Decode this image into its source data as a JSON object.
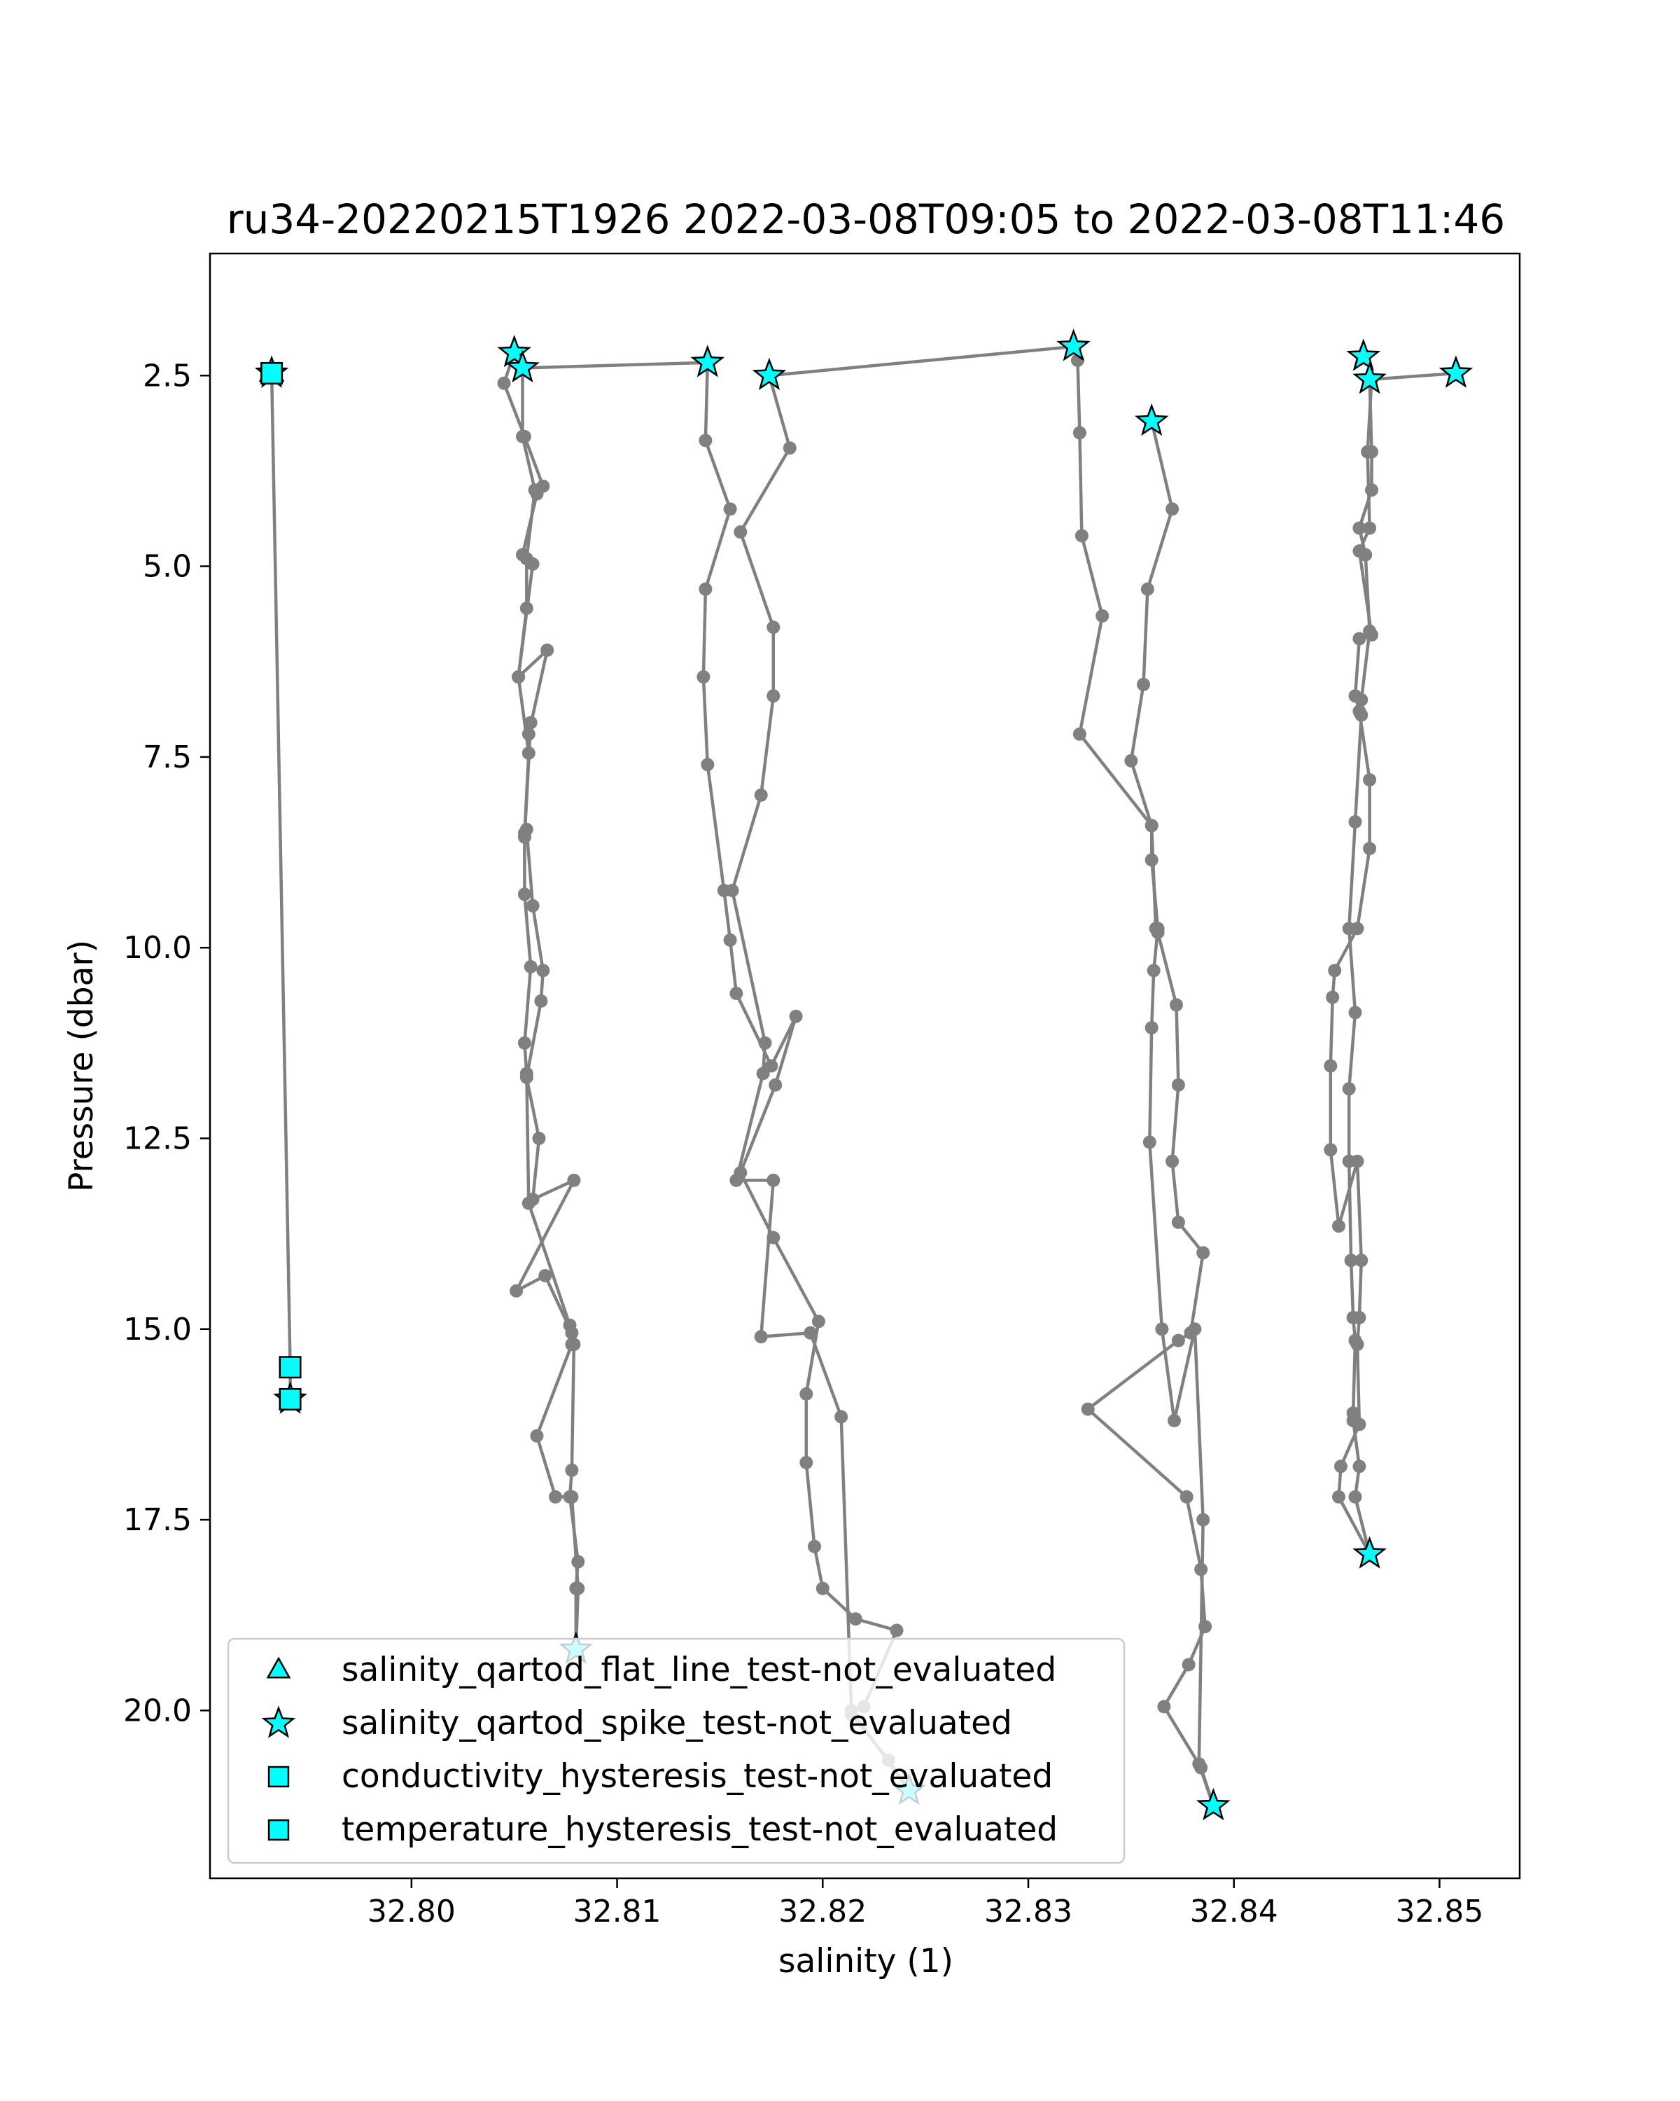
{
  "chart_data": {
    "type": "scatter",
    "title": "ru34-20220215T1926 2022-03-08T09:05 to 2022-03-08T11:46",
    "xlabel": "salinity (1)",
    "ylabel": "Pressure (dbar)",
    "xlim": [
      32.7902,
      32.8539
    ],
    "ylim": [
      22.2,
      0.9
    ],
    "y_inverted": true,
    "xticks": [
      32.8,
      32.81,
      32.82,
      32.83,
      32.84,
      32.85
    ],
    "xtick_labels": [
      "32.80",
      "32.81",
      "32.82",
      "32.83",
      "32.84",
      "32.85"
    ],
    "yticks": [
      2.5,
      5.0,
      7.5,
      10.0,
      12.5,
      15.0,
      17.5,
      20.0
    ],
    "ytick_labels": [
      "2.5",
      "5.0",
      "7.5",
      "10.0",
      "12.5",
      "15.0",
      "17.5",
      "20.0"
    ],
    "grid": false,
    "legend_position": "lower-left",
    "profile_color": "#808080",
    "marker_color": "#00ffff",
    "profiles": [
      {
        "points": [
          [
            32.7932,
            2.47
          ],
          [
            32.7941,
            15.5
          ],
          [
            32.7941,
            15.92
          ]
        ]
      },
      {
        "points": [
          [
            32.808,
            19.2
          ],
          [
            32.808,
            18.4
          ],
          [
            32.8081,
            18.05
          ],
          [
            32.8077,
            17.2
          ],
          [
            32.8078,
            16.85
          ],
          [
            32.8079,
            15.2
          ],
          [
            32.8078,
            15.05
          ],
          [
            32.8065,
            14.3
          ],
          [
            32.8051,
            14.5
          ],
          [
            32.8079,
            13.05
          ],
          [
            32.8059,
            13.3
          ],
          [
            32.8062,
            12.5
          ],
          [
            32.8056,
            11.7
          ],
          [
            32.8063,
            10.7
          ],
          [
            32.8064,
            10.3
          ],
          [
            32.8059,
            9.45
          ],
          [
            32.8056,
            8.45
          ],
          [
            32.8055,
            8.55
          ],
          [
            32.8058,
            7.05
          ],
          [
            32.8057,
            7.2
          ],
          [
            32.8066,
            6.1
          ],
          [
            32.8052,
            6.45
          ],
          [
            32.8059,
            4.97
          ],
          [
            32.8054,
            4.85
          ],
          [
            32.8061,
            4.05
          ],
          [
            32.8064,
            3.95
          ],
          [
            32.8055,
            3.3
          ],
          [
            32.8045,
            2.6
          ],
          [
            32.805,
            2.2
          ],
          [
            32.8054,
            2.4
          ],
          [
            32.8144,
            2.33
          ]
        ]
      },
      {
        "points": [
          [
            32.808,
            19.2
          ],
          [
            32.8081,
            18.4
          ],
          [
            32.8078,
            17.2
          ],
          [
            32.807,
            17.2
          ],
          [
            32.8061,
            16.4
          ],
          [
            32.8078,
            15.2
          ],
          [
            32.8077,
            14.95
          ],
          [
            32.8057,
            13.35
          ],
          [
            32.8056,
            11.65
          ],
          [
            32.8055,
            11.25
          ],
          [
            32.8058,
            10.25
          ],
          [
            32.8055,
            9.3
          ],
          [
            32.8055,
            8.5
          ],
          [
            32.8057,
            7.45
          ],
          [
            32.8052,
            6.45
          ],
          [
            32.8056,
            5.55
          ],
          [
            32.8056,
            4.9
          ],
          [
            32.806,
            4.0
          ],
          [
            32.8054,
            3.3
          ],
          [
            32.8054,
            2.4
          ]
        ]
      },
      {
        "points": [
          [
            32.8144,
            2.33
          ],
          [
            32.8143,
            3.35
          ],
          [
            32.8155,
            4.25
          ],
          [
            32.8143,
            5.3
          ],
          [
            32.8142,
            6.45
          ],
          [
            32.8144,
            7.6
          ],
          [
            32.8152,
            9.25
          ],
          [
            32.8155,
            9.9
          ],
          [
            32.8158,
            10.6
          ],
          [
            32.8175,
            11.55
          ],
          [
            32.8187,
            10.9
          ],
          [
            32.8177,
            11.8
          ],
          [
            32.816,
            12.95
          ],
          [
            32.8176,
            13.8
          ],
          [
            32.8198,
            14.9
          ],
          [
            32.8192,
            15.85
          ],
          [
            32.8192,
            16.75
          ],
          [
            32.8196,
            17.85
          ],
          [
            32.82,
            18.4
          ],
          [
            32.8216,
            18.8
          ],
          [
            32.8236,
            18.95
          ],
          [
            32.822,
            19.95
          ],
          [
            32.8214,
            20.0
          ],
          [
            32.8242,
            21.05
          ]
        ]
      },
      {
        "points": [
          [
            32.8242,
            21.05
          ],
          [
            32.8232,
            20.65
          ],
          [
            32.8214,
            20.05
          ],
          [
            32.8209,
            16.15
          ],
          [
            32.8194,
            15.05
          ],
          [
            32.817,
            15.1
          ],
          [
            32.8176,
            13.05
          ],
          [
            32.8158,
            13.05
          ],
          [
            32.8171,
            11.65
          ],
          [
            32.8172,
            11.25
          ],
          [
            32.8156,
            9.25
          ],
          [
            32.817,
            8.0
          ],
          [
            32.8176,
            6.7
          ],
          [
            32.8176,
            5.8
          ],
          [
            32.816,
            4.55
          ],
          [
            32.8184,
            3.45
          ],
          [
            32.8174,
            2.5
          ],
          [
            32.8322,
            2.12
          ]
        ]
      },
      {
        "points": [
          [
            32.8322,
            2.12
          ],
          [
            32.8324,
            2.3
          ],
          [
            32.8325,
            3.25
          ],
          [
            32.8326,
            4.6
          ],
          [
            32.8336,
            5.65
          ],
          [
            32.8325,
            7.2
          ],
          [
            32.836,
            8.4
          ],
          [
            32.8362,
            9.75
          ],
          [
            32.8363,
            9.8
          ],
          [
            32.8372,
            10.75
          ],
          [
            32.8373,
            11.8
          ],
          [
            32.837,
            12.8
          ],
          [
            32.8373,
            13.6
          ],
          [
            32.8385,
            14.0
          ],
          [
            32.8379,
            15.05
          ],
          [
            32.8373,
            15.15
          ],
          [
            32.8329,
            16.05
          ],
          [
            32.8377,
            17.2
          ],
          [
            32.8384,
            18.15
          ],
          [
            32.8386,
            18.9
          ],
          [
            32.8378,
            19.4
          ],
          [
            32.8366,
            19.95
          ],
          [
            32.8384,
            20.75
          ],
          [
            32.839,
            21.25
          ]
        ]
      },
      {
        "points": [
          [
            32.839,
            21.25
          ],
          [
            32.8383,
            20.7
          ],
          [
            32.8385,
            17.5
          ],
          [
            32.8381,
            15.0
          ],
          [
            32.8371,
            16.2
          ],
          [
            32.8365,
            15.0
          ],
          [
            32.8359,
            12.55
          ],
          [
            32.836,
            11.05
          ],
          [
            32.8361,
            10.3
          ],
          [
            32.8363,
            9.75
          ],
          [
            32.836,
            8.85
          ],
          [
            32.836,
            8.4
          ],
          [
            32.835,
            7.55
          ],
          [
            32.8356,
            6.55
          ],
          [
            32.8358,
            5.3
          ],
          [
            32.837,
            4.25
          ],
          [
            32.836,
            3.1
          ]
        ]
      },
      {
        "points": [
          [
            32.8466,
            17.95
          ],
          [
            32.8459,
            17.2
          ],
          [
            32.8461,
            16.8
          ],
          [
            32.8458,
            16.2
          ],
          [
            32.8458,
            16.1
          ],
          [
            32.8459,
            15.15
          ],
          [
            32.8458,
            14.85
          ],
          [
            32.8457,
            14.1
          ],
          [
            32.8456,
            12.8
          ],
          [
            32.8456,
            11.85
          ],
          [
            32.8459,
            10.85
          ],
          [
            32.8456,
            9.75
          ],
          [
            32.8459,
            8.35
          ],
          [
            32.8462,
            6.95
          ],
          [
            32.8462,
            6.75
          ],
          [
            32.8466,
            5.85
          ],
          [
            32.8464,
            4.85
          ],
          [
            32.8461,
            4.5
          ],
          [
            32.8467,
            4.0
          ],
          [
            32.8467,
            3.5
          ],
          [
            32.8466,
            2.55
          ]
        ]
      },
      {
        "points": [
          [
            32.8466,
            17.95
          ],
          [
            32.8451,
            17.2
          ],
          [
            32.8452,
            16.8
          ],
          [
            32.8461,
            16.25
          ],
          [
            32.846,
            15.2
          ],
          [
            32.8461,
            14.85
          ],
          [
            32.8462,
            14.1
          ],
          [
            32.846,
            12.8
          ],
          [
            32.8451,
            13.65
          ],
          [
            32.8447,
            12.65
          ],
          [
            32.8447,
            11.55
          ],
          [
            32.8448,
            10.65
          ],
          [
            32.8449,
            10.3
          ],
          [
            32.846,
            9.75
          ],
          [
            32.8466,
            8.7
          ],
          [
            32.8466,
            7.8
          ],
          [
            32.8461,
            6.9
          ],
          [
            32.8459,
            6.7
          ],
          [
            32.8461,
            5.95
          ],
          [
            32.8467,
            5.9
          ],
          [
            32.8461,
            4.8
          ],
          [
            32.8466,
            4.5
          ],
          [
            32.8465,
            3.5
          ],
          [
            32.8467,
            2.55
          ],
          [
            32.8508,
            2.47
          ]
        ]
      }
    ],
    "flagged_points": [
      {
        "x": 32.7932,
        "y": 2.47,
        "shape": "triangle"
      },
      {
        "x": 32.7932,
        "y": 2.47,
        "shape": "star"
      },
      {
        "x": 32.7932,
        "y": 2.47,
        "shape": "square"
      },
      {
        "x": 32.7941,
        "y": 15.5,
        "shape": "square"
      },
      {
        "x": 32.7941,
        "y": 15.92,
        "shape": "star"
      },
      {
        "x": 32.7941,
        "y": 15.92,
        "shape": "square"
      },
      {
        "x": 32.805,
        "y": 2.2,
        "shape": "star"
      },
      {
        "x": 32.8054,
        "y": 2.4,
        "shape": "star"
      },
      {
        "x": 32.8144,
        "y": 2.33,
        "shape": "star"
      },
      {
        "x": 32.8174,
        "y": 2.5,
        "shape": "star"
      },
      {
        "x": 32.8322,
        "y": 2.12,
        "shape": "star"
      },
      {
        "x": 32.836,
        "y": 3.1,
        "shape": "star"
      },
      {
        "x": 32.8463,
        "y": 2.25,
        "shape": "star"
      },
      {
        "x": 32.8466,
        "y": 2.55,
        "shape": "star"
      },
      {
        "x": 32.8508,
        "y": 2.47,
        "shape": "star"
      },
      {
        "x": 32.808,
        "y": 19.2,
        "shape": "star"
      },
      {
        "x": 32.8242,
        "y": 21.05,
        "shape": "star"
      },
      {
        "x": 32.839,
        "y": 21.25,
        "shape": "star"
      },
      {
        "x": 32.8466,
        "y": 17.95,
        "shape": "star"
      }
    ],
    "legend": [
      {
        "label": "salinity_qartod_flat_line_test-not_evaluated",
        "marker": "triangle"
      },
      {
        "label": "salinity_qartod_spike_test-not_evaluated",
        "marker": "star"
      },
      {
        "label": "conductivity_hysteresis_test-not_evaluated",
        "marker": "square"
      },
      {
        "label": "temperature_hysteresis_test-not_evaluated",
        "marker": "square"
      }
    ]
  }
}
